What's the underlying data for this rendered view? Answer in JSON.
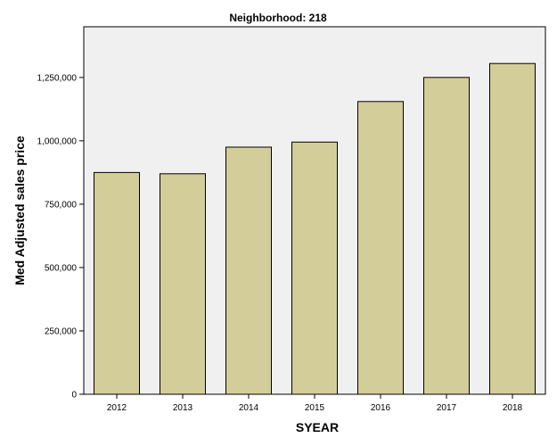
{
  "chart_data": {
    "type": "bar",
    "title": "Neighborhood: 218",
    "xlabel": "SYEAR",
    "ylabel": "Med Adjusted sales price",
    "categories": [
      "2012",
      "2013",
      "2014",
      "2015",
      "2016",
      "2017",
      "2018"
    ],
    "values": [
      875000,
      870000,
      975000,
      995000,
      1155000,
      1250000,
      1305000
    ],
    "ylim": [
      0,
      1450000
    ],
    "yticks": [
      0,
      250000,
      500000,
      750000,
      1000000,
      1250000
    ],
    "ytick_labels": [
      "0",
      "250,000",
      "500,000",
      "750,000",
      "1,000,000",
      "1,250,000"
    ],
    "grid": false,
    "legend": "none",
    "colors": {
      "bar_fill": "#d3ce99",
      "bar_stroke": "#000000",
      "plot_background": "#f0f0f0"
    }
  }
}
